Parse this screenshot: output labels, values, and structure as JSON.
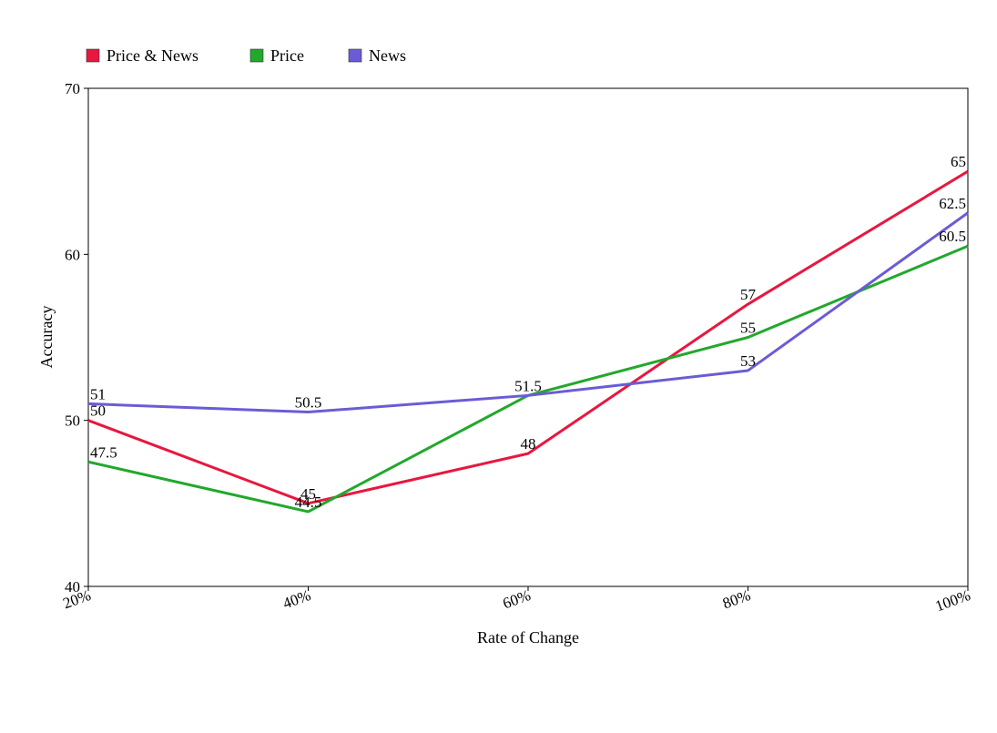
{
  "chart_data": {
    "type": "line",
    "categories": [
      "20%",
      "40%",
      "60%",
      "80%",
      "100%"
    ],
    "series": [
      {
        "name": "Price & News",
        "color": "#e8173f",
        "values": [
          50,
          45,
          48,
          57,
          65
        ]
      },
      {
        "name": "Price",
        "color": "#22a82c",
        "values": [
          47.5,
          44.5,
          51.5,
          55,
          60.5
        ]
      },
      {
        "name": "News",
        "color": "#6a5cd6",
        "values": [
          51,
          50.5,
          51.5,
          53,
          62.5
        ]
      }
    ],
    "data_labels": [
      {
        "series": 0,
        "index": 0,
        "text": "50"
      },
      {
        "series": 0,
        "index": 1,
        "text": "45"
      },
      {
        "series": 0,
        "index": 2,
        "text": "48"
      },
      {
        "series": 0,
        "index": 3,
        "text": "57"
      },
      {
        "series": 0,
        "index": 4,
        "text": "65"
      },
      {
        "series": 1,
        "index": 0,
        "text": "47.5"
      },
      {
        "series": 1,
        "index": 1,
        "text": "44.5"
      },
      {
        "series": 1,
        "index": 2,
        "text": "51.5"
      },
      {
        "series": 1,
        "index": 3,
        "text": "55"
      },
      {
        "series": 1,
        "index": 4,
        "text": "60.5"
      },
      {
        "series": 2,
        "index": 0,
        "text": "51"
      },
      {
        "series": 2,
        "index": 1,
        "text": "50.5"
      },
      {
        "series": 2,
        "index": 3,
        "text": "53"
      },
      {
        "series": 2,
        "index": 4,
        "text": "62.5"
      }
    ],
    "title": "",
    "xlabel": "Rate of Change",
    "ylabel": "Accuracy",
    "ylim": [
      40,
      70
    ],
    "yticks": [
      "40",
      "50",
      "60",
      "70"
    ],
    "grid": false,
    "legend_position": "top-left"
  }
}
